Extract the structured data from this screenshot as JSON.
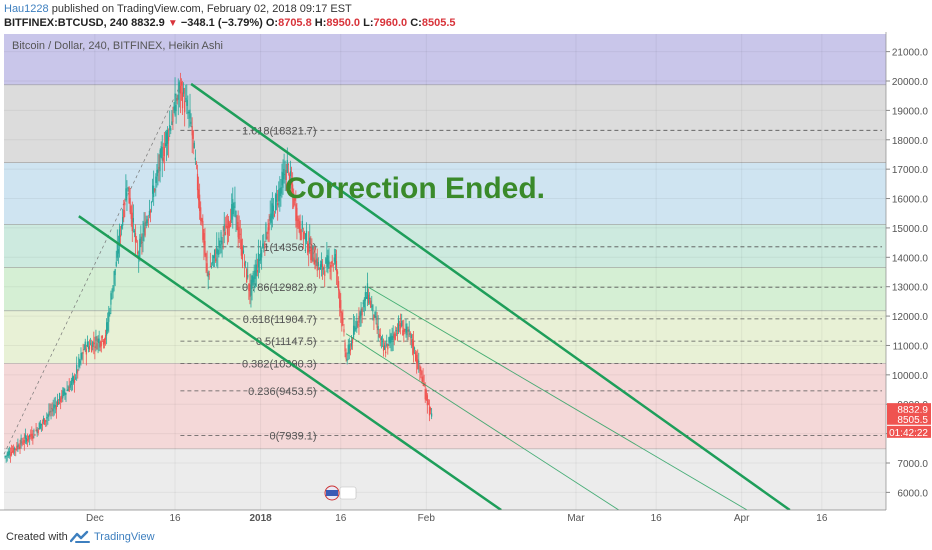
{
  "header": {
    "user": "Hau1228",
    "published_text": "published on TradingView.com, February 02, 2018 09:17 EST",
    "symbol_line": "BITFINEX:BTCUSD, 240",
    "last": "8832.9",
    "change": "−348.1 (−3.79%)",
    "o_label": "O:",
    "o_value": "8705.8",
    "h_label": "H:",
    "h_value": "8950.0",
    "l_label": "L:",
    "l_value": "7960.0",
    "c_label": "C:",
    "c_value": "8505.5"
  },
  "footer": {
    "created_with": "Created with",
    "brand": "TradingView"
  },
  "colors": {
    "up": "#26a69a",
    "down": "#ef5350",
    "channel": "#1e9e5a",
    "fib_bands": [
      "#c9c6ea",
      "#dcdcdc",
      "#cfe4f1",
      "#cdeadf",
      "#d5efd4",
      "#e8f1d6",
      "#f4d8d8",
      "#ececec"
    ]
  },
  "chart_data": {
    "type": "candlestick",
    "title": "Bitcoin / Dollar, 240, BITFINEX, Heikin Ashi",
    "annotation": "Correction Ended.",
    "ylim": [
      5400,
      21600
    ],
    "y_ticks": [
      "6000.0",
      "7000.0",
      "8000.0",
      "9000.0",
      "10000.0",
      "11000.0",
      "12000.0",
      "13000.0",
      "14000.0",
      "15000.0",
      "16000.0",
      "17000.0",
      "18000.0",
      "19000.0",
      "20000.0",
      "21000.0"
    ],
    "x_ticks": [
      {
        "label": "Dec",
        "date": "2017-12-01"
      },
      {
        "label": "16",
        "date": "2017-12-16"
      },
      {
        "label": "2018",
        "date": "2018-01-01",
        "bold": true
      },
      {
        "label": "16",
        "date": "2018-01-16"
      },
      {
        "label": "Feb",
        "date": "2018-02-01"
      },
      {
        "label": "Mar",
        "date": "2018-03-01"
      },
      {
        "label": "16",
        "date": "2018-03-16"
      },
      {
        "label": "Apr",
        "date": "2018-04-01"
      },
      {
        "label": "16",
        "date": "2018-04-16"
      }
    ],
    "xlim": [
      "2017-11-14",
      "2018-04-28"
    ],
    "series_key_points": [
      {
        "date": "2017-11-14",
        "value": 7200
      },
      {
        "date": "2017-11-20",
        "value": 8100
      },
      {
        "date": "2017-11-27",
        "value": 9800
      },
      {
        "date": "2017-11-29",
        "value": 10900
      },
      {
        "date": "2017-12-03",
        "value": 11300
      },
      {
        "date": "2017-12-07",
        "value": 16500
      },
      {
        "date": "2017-12-09",
        "value": 14000
      },
      {
        "date": "2017-12-13",
        "value": 17100
      },
      {
        "date": "2017-12-17",
        "value": 19800
      },
      {
        "date": "2017-12-19",
        "value": 18500
      },
      {
        "date": "2017-12-22",
        "value": 13400
      },
      {
        "date": "2017-12-24",
        "value": 14300
      },
      {
        "date": "2017-12-27",
        "value": 15700
      },
      {
        "date": "2017-12-30",
        "value": 12800
      },
      {
        "date": "2018-01-02",
        "value": 14800
      },
      {
        "date": "2018-01-06",
        "value": 17100
      },
      {
        "date": "2018-01-08",
        "value": 15200
      },
      {
        "date": "2018-01-12",
        "value": 13600
      },
      {
        "date": "2018-01-15",
        "value": 13900
      },
      {
        "date": "2018-01-17",
        "value": 10500
      },
      {
        "date": "2018-01-19",
        "value": 11800
      },
      {
        "date": "2018-01-21",
        "value": 12800
      },
      {
        "date": "2018-01-24",
        "value": 10800
      },
      {
        "date": "2018-01-27",
        "value": 11700
      },
      {
        "date": "2018-01-29",
        "value": 11300
      },
      {
        "date": "2018-01-31",
        "value": 10000
      },
      {
        "date": "2018-02-02",
        "value": 8505
      }
    ],
    "fib_levels": [
      {
        "label": "0(7939.1)",
        "value": 7939.1
      },
      {
        "label": "0.236(9453.5)",
        "value": 9453.5
      },
      {
        "label": "0.382(10390.3)",
        "value": 10390.3
      },
      {
        "label": "0.5(11147.5)",
        "value": 11147.5
      },
      {
        "label": "0.618(11904.7)",
        "value": 11904.7
      },
      {
        "label": "0.786(12982.8)",
        "value": 12982.8
      },
      {
        "label": "1(14356.9)",
        "value": 14356.9
      },
      {
        "label": "1.618(18321.7)",
        "value": 18321.7
      }
    ],
    "fib_band_bounds": [
      21600,
      19870,
      17220,
      15120,
      13660,
      12180,
      10390,
      7480,
      5400
    ],
    "channels": [
      {
        "style": "thick",
        "points": [
          [
            "2017-12-19",
            19900
          ],
          [
            "2018-04-10",
            5400
          ]
        ]
      },
      {
        "style": "thick",
        "points": [
          [
            "2017-11-28",
            15400
          ],
          [
            "2018-02-15",
            5400
          ]
        ]
      },
      {
        "style": "thin",
        "points": [
          [
            "2018-01-21",
            13000
          ],
          [
            "2018-04-02",
            5400
          ]
        ]
      },
      {
        "style": "thin",
        "points": [
          [
            "2018-01-17",
            11400
          ],
          [
            "2018-03-09",
            5400
          ]
        ]
      }
    ],
    "price_labels": [
      {
        "text": "8832.9",
        "value": 8832.9
      },
      {
        "text": "8505.5",
        "value": 8505.5
      },
      {
        "text": "01:42:22",
        "value": 8060
      }
    ]
  }
}
